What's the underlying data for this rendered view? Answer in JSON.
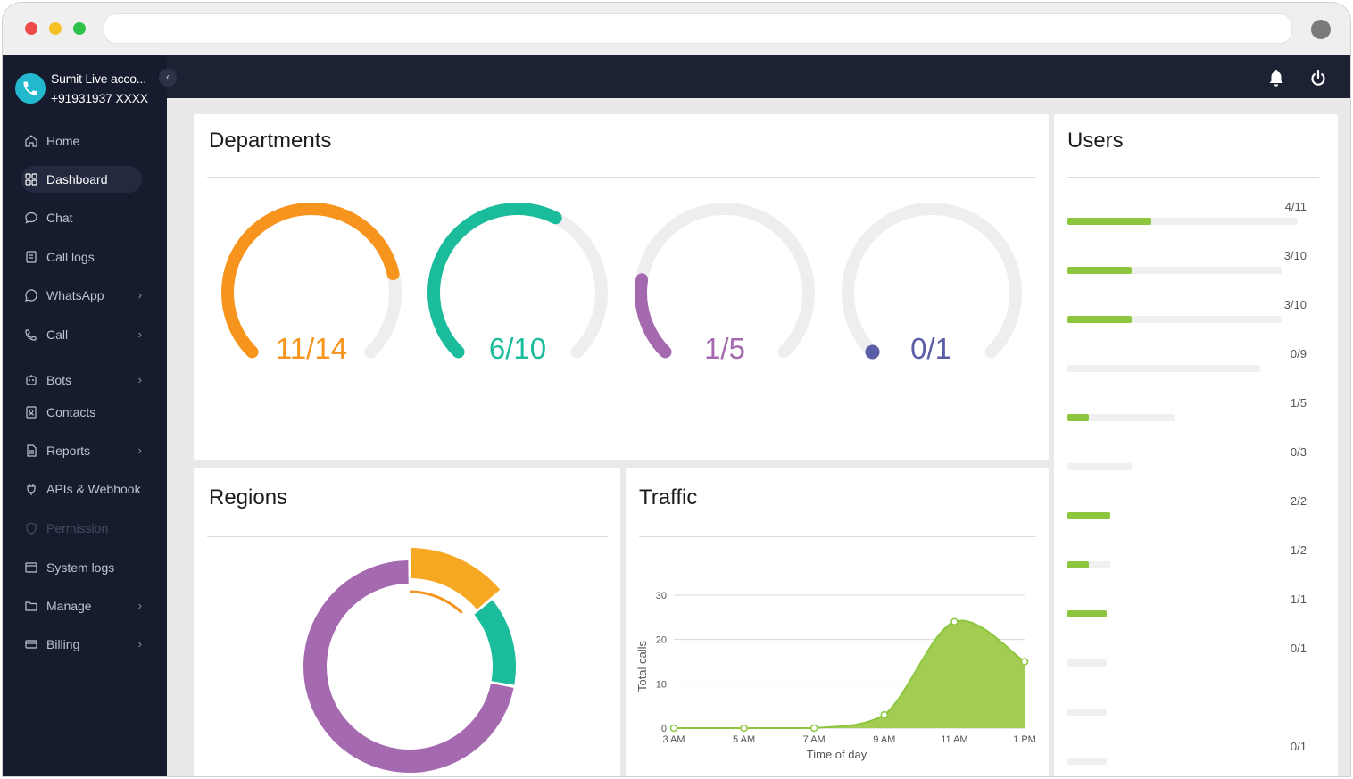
{
  "browser": {
    "url": ""
  },
  "sidebar": {
    "account_name": "Sumit Live acco...",
    "account_phone": "+91931937 XXXX",
    "collapse_icon": "chevron-left-icon",
    "items": [
      {
        "label": "Home",
        "icon": "home-icon"
      },
      {
        "label": "Dashboard",
        "icon": "grid-icon"
      },
      {
        "label": "Chat",
        "icon": "chat-icon"
      },
      {
        "label": "Call logs",
        "icon": "call-log-icon"
      },
      {
        "label": "WhatsApp",
        "icon": "whatsapp-icon"
      },
      {
        "label": "Call",
        "icon": "phone-icon"
      },
      {
        "label": "Bots",
        "icon": "bot-icon"
      },
      {
        "label": "Contacts",
        "icon": "contacts-icon"
      },
      {
        "label": "Reports",
        "icon": "reports-icon"
      },
      {
        "label": "APIs & Webhook",
        "icon": "plug-icon"
      },
      {
        "label": "Permission",
        "icon": "shield-icon"
      },
      {
        "label": "System logs",
        "icon": "system-logs-icon"
      },
      {
        "label": "Manage",
        "icon": "folder-icon"
      },
      {
        "label": "Billing",
        "icon": "billing-icon"
      }
    ]
  },
  "topbar": {
    "icons": [
      "bell-icon",
      "power-icon"
    ]
  },
  "departments": {
    "title": "Departments",
    "gauges": [
      {
        "label": "11/14",
        "value": 11,
        "max": 14,
        "color": "#f7941d"
      },
      {
        "label": "6/10",
        "value": 6,
        "max": 10,
        "color": "#1abc9c"
      },
      {
        "label": "1/5",
        "value": 1,
        "max": 5,
        "color": "#a569b0"
      },
      {
        "label": "0/1",
        "value": 0,
        "max": 1,
        "color": "#5b5ea6"
      }
    ]
  },
  "users": {
    "title": "Users",
    "rows": [
      {
        "label": "4/11",
        "value": 4,
        "max": 11
      },
      {
        "label": "3/10",
        "value": 3,
        "max": 10
      },
      {
        "label": "3/10",
        "value": 3,
        "max": 10
      },
      {
        "label": "0/9",
        "value": 0,
        "max": 9
      },
      {
        "label": "1/5",
        "value": 1,
        "max": 5
      },
      {
        "label": "0/3",
        "value": 0,
        "max": 3
      },
      {
        "label": "2/2",
        "value": 2,
        "max": 2
      },
      {
        "label": "1/2",
        "value": 1,
        "max": 2
      },
      {
        "label": "1/1",
        "value": 1,
        "max": 1
      },
      {
        "label": "0/1",
        "value": 0,
        "max": 1
      },
      {
        "label": "",
        "value": 0,
        "max": 1
      },
      {
        "label": "0/1",
        "value": 0,
        "max": 1
      }
    ]
  },
  "regions": {
    "title": "Regions",
    "slices": [
      {
        "value": 14,
        "color": "#f7a823"
      },
      {
        "value": 14,
        "color": "#1abc9c"
      },
      {
        "value": 72,
        "color": "#a569b0"
      }
    ],
    "highlight_color": "#f7941d"
  },
  "traffic": {
    "title": "Traffic",
    "chart_data": {
      "type": "area",
      "xlabel": "Time of day",
      "ylabel": "Total calls",
      "x": [
        "3 AM",
        "5 AM",
        "7 AM",
        "9 AM",
        "11 AM",
        "1 PM"
      ],
      "y": [
        0,
        0,
        0,
        3,
        24,
        15
      ],
      "yticks": [
        0,
        10,
        20,
        30
      ],
      "ylim": [
        0,
        30
      ],
      "color": "#8cc63f",
      "grid": true
    }
  }
}
